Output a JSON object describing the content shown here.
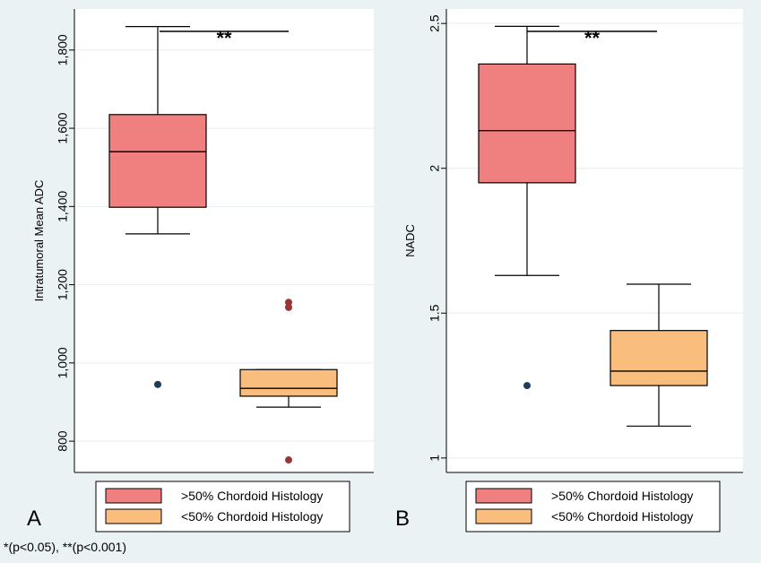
{
  "footnote": "*(p<0.05), **(p<0.001)",
  "colors": {
    "background": "#eaf2f3",
    "plot_area": "#ffffff",
    "gridline": "#e6eeee",
    "group1_box": "#f08080",
    "group2_box": "#f9bd7e",
    "group1_outlier": "#1d3c5c",
    "group2_outlier": "#9b3434"
  },
  "chart_data": [
    {
      "type": "box",
      "panel_label": "A",
      "ylabel": "Intratumoral Mean ADC",
      "ylim": [
        720,
        1905
      ],
      "yticks": [
        800,
        1000,
        1200,
        1400,
        1600,
        1800
      ],
      "ytick_labels": [
        "800",
        "1,000",
        "1,200",
        "1,400",
        "1,600",
        "1,800"
      ],
      "grid": true,
      "legend_position": "bottom",
      "significance": "**",
      "series": [
        {
          "name": ">50% Chordoid Histology",
          "min": 1330,
          "q1": 1398,
          "median": 1540,
          "q3": 1635,
          "max": 1860,
          "outliers": [
            945
          ]
        },
        {
          "name": "<50% Chordoid Histology",
          "min": 887,
          "q1": 915,
          "median": 935,
          "q3": 983,
          "max": 983,
          "outliers": [
            1155,
            1142,
            752
          ]
        }
      ]
    },
    {
      "type": "box",
      "panel_label": "B",
      "ylabel": "NADC",
      "ylim": [
        0.95,
        2.55
      ],
      "yticks": [
        1,
        1.5,
        2,
        2.5
      ],
      "ytick_labels": [
        "1",
        "1.5",
        "2",
        "2.5"
      ],
      "grid": true,
      "legend_position": "bottom",
      "significance": "**",
      "series": [
        {
          "name": ">50% Chordoid Histology",
          "min": 1.63,
          "q1": 1.95,
          "median": 2.13,
          "q3": 2.36,
          "max": 2.49,
          "outliers": [
            1.25
          ]
        },
        {
          "name": "<50% Chordoid Histology",
          "min": 1.11,
          "q1": 1.25,
          "median": 1.3,
          "q3": 1.44,
          "max": 1.6,
          "outliers": []
        }
      ]
    }
  ]
}
